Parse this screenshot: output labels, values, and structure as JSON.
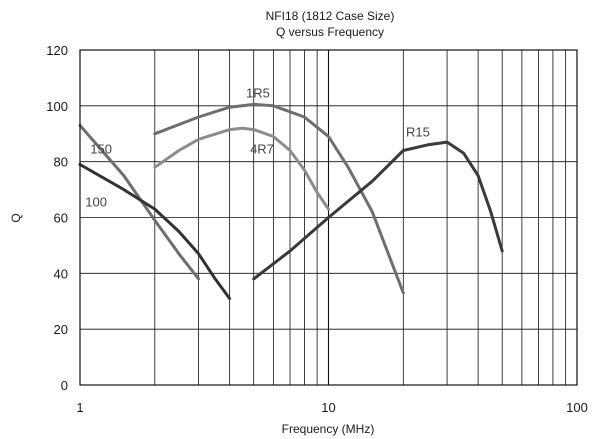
{
  "chart_data": {
    "type": "line",
    "title": "NFI18 (1812 Case Size)",
    "subtitle": "Q versus Frequency",
    "xlabel": "Frequency (MHz)",
    "ylabel": "Q",
    "xscale": "log",
    "xlim": [
      1,
      100
    ],
    "ylim": [
      0,
      120
    ],
    "grid": true,
    "legend": "inline labels",
    "x_tick_labels": [
      "1",
      "10",
      "100"
    ],
    "y_tick_labels": [
      "0",
      "20",
      "40",
      "60",
      "80",
      "100",
      "120"
    ],
    "series": [
      {
        "name": "1R5",
        "color": "#6e6e6e",
        "x": [
          2,
          3,
          4,
          5,
          6,
          8,
          10,
          12,
          15,
          20
        ],
        "y": [
          90,
          96,
          99.5,
          100.5,
          100,
          96,
          89,
          78,
          62,
          33
        ]
      },
      {
        "name": "4R7",
        "color": "#8c8c8c",
        "x": [
          2,
          2.5,
          3,
          4,
          4.5,
          5,
          6,
          7,
          8,
          9,
          10
        ],
        "y": [
          78,
          84,
          88,
          91.5,
          92,
          91.5,
          89,
          84,
          77,
          69,
          63
        ]
      },
      {
        "name": "150",
        "color": "#6e6e6e",
        "x": [
          1,
          1.5,
          2,
          2.5,
          3
        ],
        "y": [
          93,
          75,
          59,
          47,
          38
        ]
      },
      {
        "name": "100",
        "color": "#333333",
        "x": [
          1,
          1.5,
          2,
          2.5,
          3,
          3.5,
          4
        ],
        "y": [
          79,
          70,
          63,
          55,
          47,
          38,
          31
        ]
      },
      {
        "name": "R15",
        "color": "#3a3a3a",
        "x": [
          5,
          7,
          10,
          15,
          20,
          25,
          30,
          35,
          40,
          45,
          50
        ],
        "y": [
          38,
          48,
          60,
          73,
          84,
          86,
          87,
          83,
          75,
          62,
          48
        ]
      }
    ]
  }
}
